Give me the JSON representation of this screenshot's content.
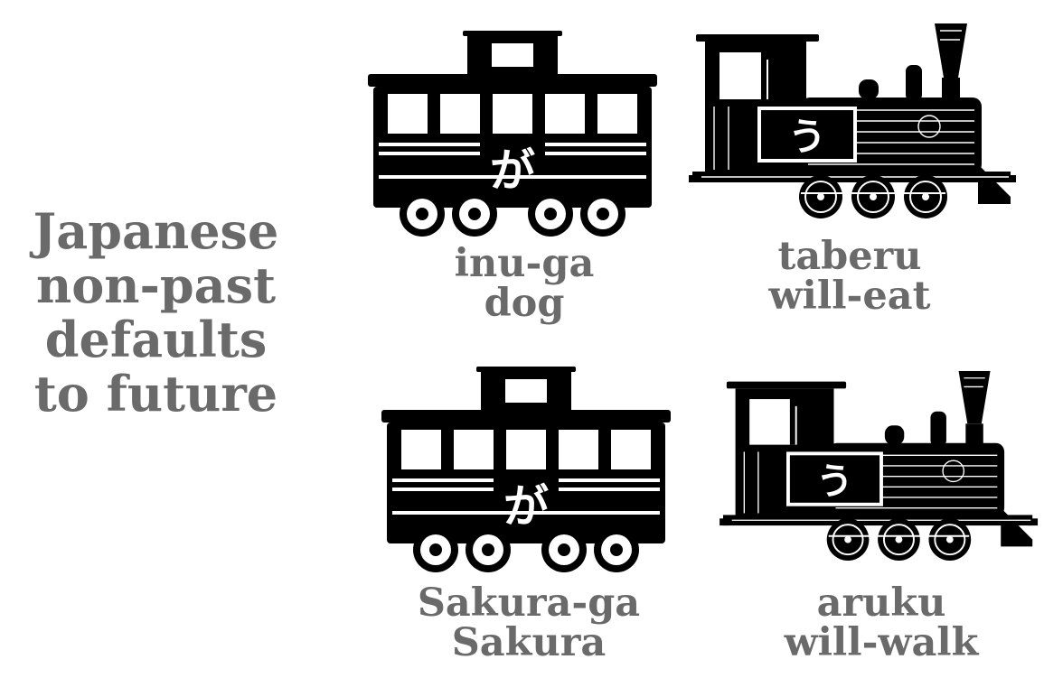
{
  "title": {
    "lines": [
      "Japanese",
      "non-past",
      "defaults",
      "to future"
    ]
  },
  "icons": {
    "car": "train-car-icon",
    "locomotive": "steam-locomotive-icon"
  },
  "colors": {
    "text": "#6a6a6a",
    "ink": "#000000",
    "background": "#ffffff"
  },
  "rows": [
    {
      "car": {
        "particle": "が",
        "caption_lines": [
          "inu-ga",
          "dog"
        ]
      },
      "locomotive": {
        "kana": "う",
        "caption_lines": [
          "taberu",
          "will-eat"
        ]
      }
    },
    {
      "car": {
        "particle": "が",
        "caption_lines": [
          "Sakura-ga",
          "Sakura"
        ]
      },
      "locomotive": {
        "kana": "う",
        "caption_lines": [
          "aruku",
          "will-walk"
        ]
      }
    }
  ]
}
